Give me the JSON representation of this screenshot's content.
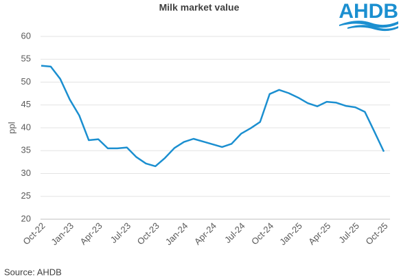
{
  "chart_data": {
    "type": "line",
    "title": "Milk market value",
    "ylabel": "ppl",
    "source": "Source: AHDB",
    "logo": "AHDB",
    "categories": [
      "Oct-22",
      null,
      null,
      "Jan-23",
      null,
      null,
      "Apr-23",
      null,
      null,
      "Jul-23",
      null,
      null,
      "Oct-23",
      null,
      null,
      "Jan-24",
      null,
      null,
      "Apr-24",
      null,
      null,
      "Jul-24",
      null,
      null,
      "Oct-24",
      null,
      null,
      "Jan-25",
      null,
      null,
      "Apr-25",
      null,
      null,
      "Jul-25",
      null,
      null,
      "Oct-25"
    ],
    "values": [
      53.6,
      53.4,
      50.7,
      46.2,
      42.7,
      37.3,
      37.5,
      35.5,
      35.5,
      35.7,
      33.6,
      32.2,
      31.6,
      33.4,
      35.6,
      36.9,
      37.6,
      37.0,
      36.4,
      35.8,
      36.5,
      38.7,
      39.9,
      41.3,
      47.4,
      48.3,
      47.6,
      46.6,
      45.4,
      44.7,
      45.7,
      45.5,
      44.8,
      44.5,
      43.5,
      39.2,
      34.8
    ],
    "color": "#1b8fd0",
    "ylim": [
      20,
      60
    ],
    "yticks": [
      20,
      25,
      30,
      35,
      40,
      45,
      50,
      55,
      60
    ],
    "grid": true
  }
}
